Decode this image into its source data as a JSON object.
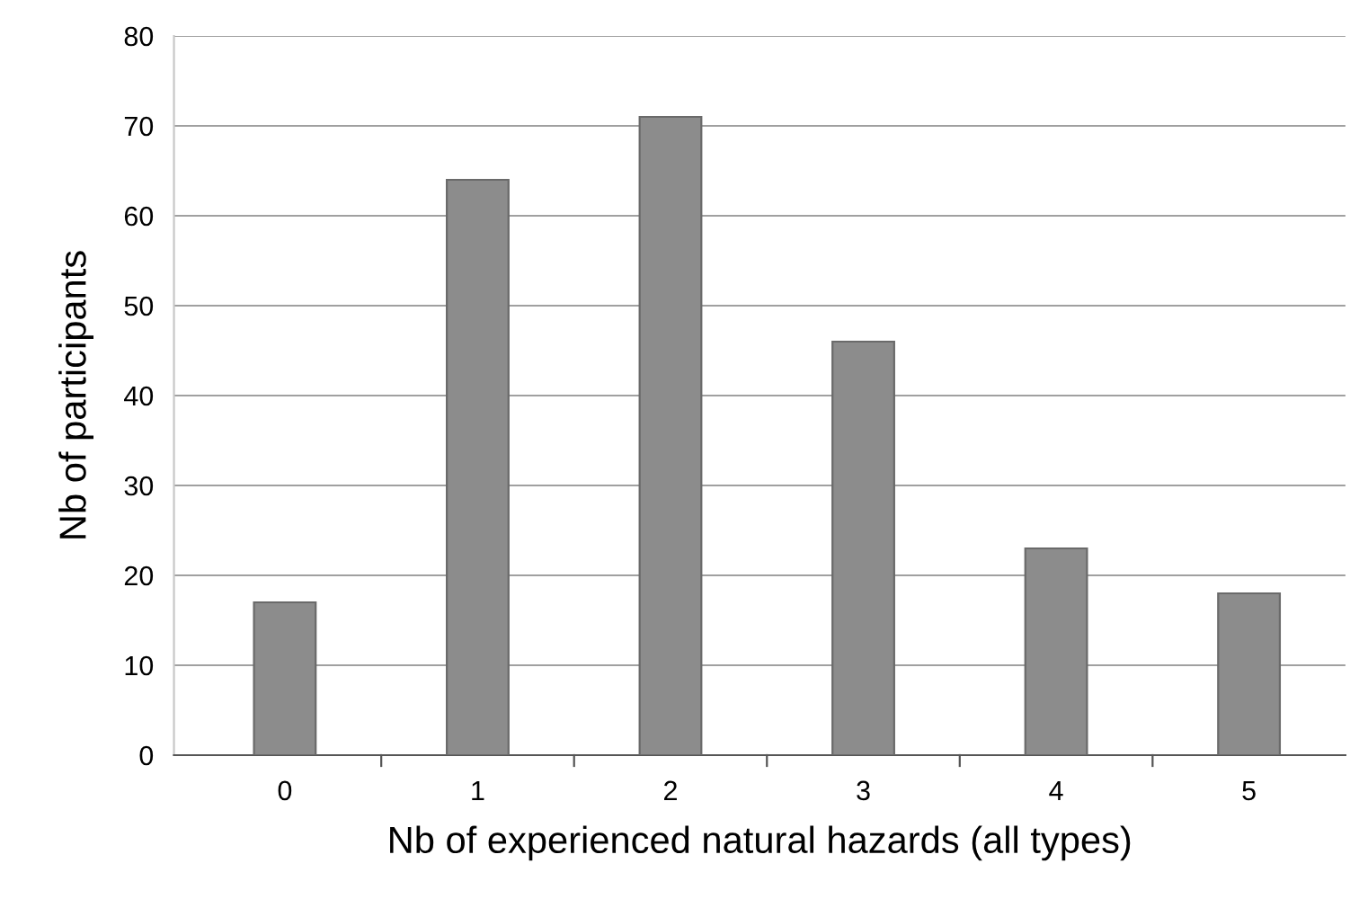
{
  "chart_data": {
    "type": "bar",
    "xlabel": "Nb of experienced natural hazards (all types)",
    "ylabel": "Nb of participants",
    "categories": [
      "0",
      "1",
      "2",
      "3",
      "4",
      "5"
    ],
    "values": [
      17,
      64,
      71,
      46,
      23,
      18
    ],
    "color": "#8c8c8c",
    "ylim": [
      0,
      80
    ],
    "yticks": [
      0,
      10,
      20,
      30,
      40,
      50,
      60,
      70,
      80
    ],
    "grid": "y",
    "legend": false
  }
}
